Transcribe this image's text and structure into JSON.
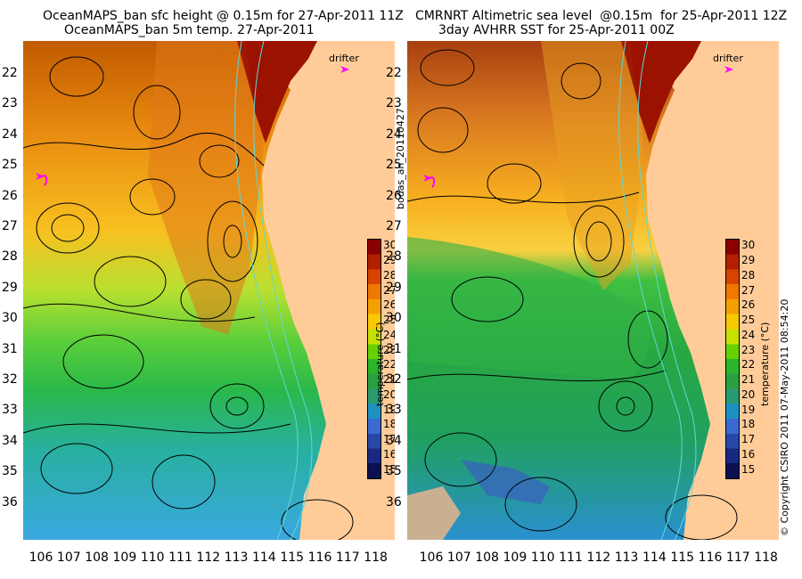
{
  "left_panel": {
    "title_line1": "OceanMAPS_ban sfc height @ 0.15m for 27-Apr-2011 11Z",
    "title_line2": "OceanMAPS_ban 5m temp. 27-Apr-2011",
    "drifter_label": "drifter"
  },
  "right_panel": {
    "title_line1": "CMRNRT Altimetric sea level  @0.15m  for 25-Apr-2011 12Z",
    "title_line2": "3day AVHRR SST for 25-Apr-2011 00Z",
    "drifter_label": "drifter"
  },
  "center_label": "bodas_an_20110427",
  "copyright": "© Copyright CSIRO 2011   07-May-2011 08:54:20",
  "colorbar": {
    "label": "temperature (°C)",
    "ticks": [
      "30",
      "29",
      "28",
      "27",
      "26",
      "25",
      "24",
      "23",
      "22",
      "21",
      "20",
      "19",
      "18",
      "17",
      "16",
      "15"
    ],
    "colors": [
      "#8b0000",
      "#b22000",
      "#d84400",
      "#f07800",
      "#f5a000",
      "#f8c800",
      "#c8e000",
      "#66d000",
      "#2bb52b",
      "#2aa040",
      "#2a9a70",
      "#1e90c0",
      "#3a6ad0",
      "#2848a8",
      "#182880",
      "#0a1050"
    ]
  },
  "lat_ticks": [
    "22",
    "23",
    "24",
    "25",
    "26",
    "27",
    "28",
    "29",
    "30",
    "31",
    "32",
    "33",
    "34",
    "35",
    "36"
  ],
  "lon_ticks": [
    "106",
    "107",
    "108",
    "109",
    "110",
    "111",
    "112",
    "113",
    "114",
    "115",
    "116",
    "117",
    "118"
  ],
  "colors": {
    "land": "#ffcc99",
    "drifter": "#ff00ff",
    "contour": "#000000",
    "bathy": "#5fd8d8"
  }
}
